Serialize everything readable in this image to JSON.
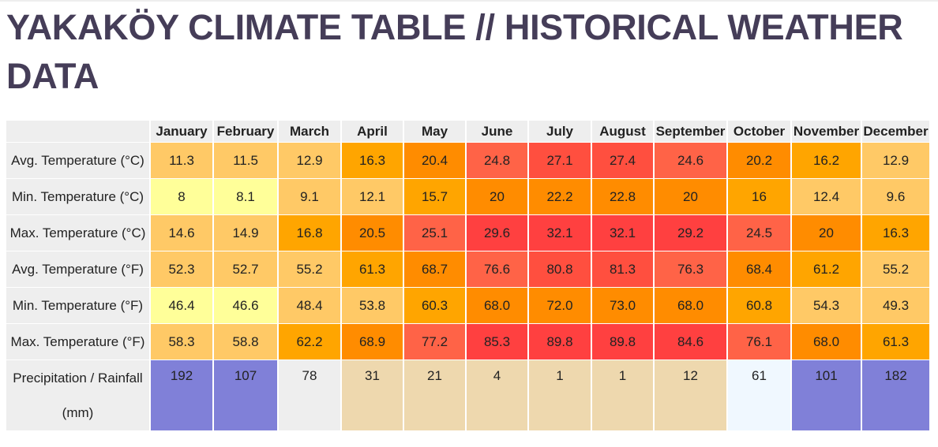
{
  "title": "YAKAKÖY CLIMATE TABLE // HISTORICAL WEATHER DATA",
  "months": [
    "January",
    "February",
    "March",
    "April",
    "May",
    "June",
    "July",
    "August",
    "September",
    "October",
    "November",
    "December"
  ],
  "rows": [
    {
      "label": "Avg. Temperature (°C)",
      "values": [
        "11.3",
        "11.5",
        "12.9",
        "16.3",
        "20.4",
        "24.8",
        "27.1",
        "27.4",
        "24.6",
        "20.2",
        "16.2",
        "12.9"
      ],
      "colors": [
        "#ffc966",
        "#ffc966",
        "#ffc966",
        "#ffa500",
        "#ff8c00",
        "#ff6347",
        "#ff4f3f",
        "#ff4f3f",
        "#ff6347",
        "#ff8c00",
        "#ffa500",
        "#ffc966"
      ]
    },
    {
      "label": "Min. Temperature (°C)",
      "values": [
        "8",
        "8.1",
        "9.1",
        "12.1",
        "15.7",
        "20",
        "22.2",
        "22.8",
        "20",
        "16",
        "12.4",
        "9.6"
      ],
      "colors": [
        "#ffff99",
        "#ffff99",
        "#ffc966",
        "#ffc966",
        "#ffa500",
        "#ff8c00",
        "#ff8c00",
        "#ff8c00",
        "#ff8c00",
        "#ffa500",
        "#ffc966",
        "#ffc966"
      ]
    },
    {
      "label": "Max. Temperature (°C)",
      "values": [
        "14.6",
        "14.9",
        "16.8",
        "20.5",
        "25.1",
        "29.6",
        "32.1",
        "32.1",
        "29.2",
        "24.5",
        "20",
        "16.3"
      ],
      "colors": [
        "#ffc966",
        "#ffc966",
        "#ffa500",
        "#ff8c00",
        "#ff6347",
        "#ff4040",
        "#ff4040",
        "#ff4040",
        "#ff4040",
        "#ff6347",
        "#ff8c00",
        "#ffa500"
      ]
    },
    {
      "label": "Avg. Temperature (°F)",
      "values": [
        "52.3",
        "52.7",
        "55.2",
        "61.3",
        "68.7",
        "76.6",
        "80.8",
        "81.3",
        "76.3",
        "68.4",
        "61.2",
        "55.2"
      ],
      "colors": [
        "#ffc966",
        "#ffc966",
        "#ffc966",
        "#ffa500",
        "#ff8c00",
        "#ff6347",
        "#ff4f3f",
        "#ff4f3f",
        "#ff6347",
        "#ff8c00",
        "#ffa500",
        "#ffc966"
      ]
    },
    {
      "label": "Min. Temperature (°F)",
      "values": [
        "46.4",
        "46.6",
        "48.4",
        "53.8",
        "60.3",
        "68.0",
        "72.0",
        "73.0",
        "68.0",
        "60.8",
        "54.3",
        "49.3"
      ],
      "colors": [
        "#ffff99",
        "#ffff99",
        "#ffc966",
        "#ffc966",
        "#ffa500",
        "#ff8c00",
        "#ff8c00",
        "#ff8c00",
        "#ff8c00",
        "#ffa500",
        "#ffc966",
        "#ffc966"
      ]
    },
    {
      "label": "Max. Temperature (°F)",
      "values": [
        "58.3",
        "58.8",
        "62.2",
        "68.9",
        "77.2",
        "85.3",
        "89.8",
        "89.8",
        "84.6",
        "76.1",
        "68.0",
        "61.3"
      ],
      "colors": [
        "#ffc966",
        "#ffc966",
        "#ffa500",
        "#ff8c00",
        "#ff6347",
        "#ff4040",
        "#ff4040",
        "#ff4040",
        "#ff4040",
        "#ff6347",
        "#ff8c00",
        "#ffa500"
      ]
    },
    {
      "label": "Precipitation / Rainfall (mm)",
      "values": [
        "192",
        "107",
        "78",
        "31",
        "21",
        "4",
        "1",
        "1",
        "12",
        "61",
        "101",
        "182"
      ],
      "colors": [
        "#8080d8",
        "#8080d8",
        "#eeeeee",
        "#eed8ae",
        "#eed8ae",
        "#eed8ae",
        "#eed8ae",
        "#eed8ae",
        "#eed8ae",
        "#f0f8ff",
        "#8080d8",
        "#8080d8"
      ]
    }
  ],
  "colors": {
    "title": "#453d58",
    "header_bg": "#eeeeee"
  }
}
